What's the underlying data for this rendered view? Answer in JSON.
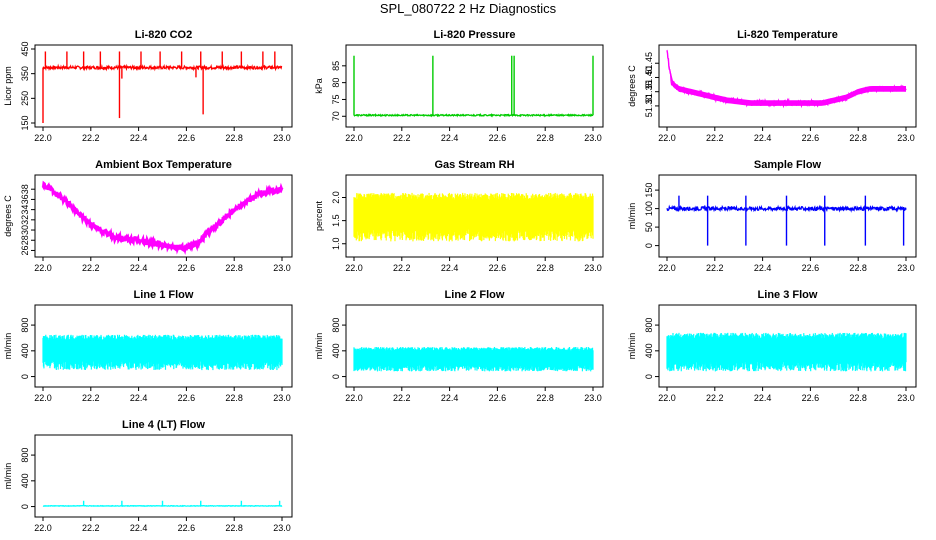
{
  "title": "SPL_080722  2 Hz Diagnostics",
  "chart_data": [
    {
      "id": "co2",
      "type": "line",
      "title": "Li-820 CO2",
      "ylabel": "Licor ppm",
      "color": "#ff0000",
      "xlim": [
        22.0,
        23.0
      ],
      "ylim": [
        150,
        450
      ],
      "xticks": [
        "22.0",
        "22.2",
        "22.4",
        "22.6",
        "22.8",
        "23.0"
      ],
      "yticks": [
        "150",
        "250",
        "350",
        "450"
      ],
      "baseline": 375,
      "noise": 6,
      "spikes": [
        {
          "x": 22.0,
          "y": 150
        },
        {
          "x": 22.32,
          "y": 170
        },
        {
          "x": 22.67,
          "y": 185
        },
        {
          "x": 22.33,
          "y": 330
        },
        {
          "x": 22.64,
          "y": 335
        }
      ],
      "up_spikes": [
        22.01,
        22.1,
        22.17,
        22.24,
        22.32,
        22.41,
        22.49,
        22.58,
        22.66,
        22.75,
        22.83,
        22.92,
        22.97
      ],
      "up_value": 440
    },
    {
      "id": "pressure",
      "type": "line",
      "title": "Li-820 Pressure",
      "ylabel": "kPa",
      "color": "#00cc00",
      "xlim": [
        22.0,
        23.0
      ],
      "ylim": [
        68,
        90
      ],
      "xticks": [
        "22.0",
        "22.2",
        "22.4",
        "22.6",
        "22.8",
        "23.0"
      ],
      "yticks": [
        "70",
        "75",
        "80",
        "85"
      ],
      "baseline": 70.3,
      "noise": 0.2,
      "up_spikes": [
        22.0,
        22.33,
        22.66,
        22.67,
        23.0
      ],
      "up_value": 88
    },
    {
      "id": "temperature",
      "type": "step",
      "title": "Li-820 Temperature",
      "ylabel": "degrees C",
      "color": "#ff00ff",
      "xlim": [
        22.0,
        23.0
      ],
      "ylim": [
        51.24,
        51.5
      ],
      "xticks": [
        "22.0",
        "22.2",
        "22.4",
        "22.6",
        "22.8",
        "23.0"
      ],
      "yticks": [
        "51.30",
        "51.35",
        "51.40",
        "51.45"
      ],
      "profile": [
        [
          22.0,
          51.49
        ],
        [
          22.02,
          51.38
        ],
        [
          22.05,
          51.36
        ],
        [
          22.1,
          51.35
        ],
        [
          22.15,
          51.34
        ],
        [
          22.2,
          51.33
        ],
        [
          22.25,
          51.32
        ],
        [
          22.35,
          51.31
        ],
        [
          22.65,
          51.31
        ],
        [
          22.7,
          51.32
        ],
        [
          22.75,
          51.33
        ],
        [
          22.8,
          51.35
        ],
        [
          22.85,
          51.36
        ],
        [
          23.0,
          51.36
        ]
      ],
      "band": 0.02
    },
    {
      "id": "ambient",
      "type": "line",
      "title": "Ambient Box Temperature",
      "ylabel": "degrees C",
      "color": "#ff00ff",
      "xlim": [
        22.0,
        23.0
      ],
      "ylim": [
        25.5,
        40
      ],
      "xticks": [
        "22.0",
        "22.2",
        "22.4",
        "22.6",
        "22.8",
        "23.0"
      ],
      "yticks": [
        "26",
        "28",
        "30",
        "32",
        "34",
        "36",
        "38"
      ],
      "profile": [
        [
          22.0,
          39
        ],
        [
          22.1,
          35.5
        ],
        [
          22.2,
          31
        ],
        [
          22.3,
          28.5
        ],
        [
          22.4,
          28
        ],
        [
          22.5,
          27
        ],
        [
          22.6,
          26.5
        ],
        [
          22.65,
          27.5
        ],
        [
          22.7,
          30
        ],
        [
          22.8,
          34
        ],
        [
          22.9,
          37
        ],
        [
          23.0,
          38
        ]
      ],
      "band": 0.5
    },
    {
      "id": "rh",
      "type": "band",
      "title": "Gas Stream RH",
      "ylabel": "percent",
      "color": "#ffff00",
      "xlim": [
        22.0,
        23.0
      ],
      "ylim": [
        0.8,
        2.4
      ],
      "xticks": [
        "22.0",
        "22.2",
        "22.4",
        "22.6",
        "22.8",
        "23.0"
      ],
      "yticks": [
        "1.0",
        "1.5",
        "2.0"
      ],
      "low": 1.05,
      "high": 2.1
    },
    {
      "id": "sample",
      "type": "line",
      "title": "Sample Flow",
      "ylabel": "ml/min",
      "color": "#0000ff",
      "xlim": [
        22.0,
        23.0
      ],
      "ylim": [
        -20,
        180
      ],
      "xticks": [
        "22.0",
        "22.2",
        "22.4",
        "22.6",
        "22.8",
        "23.0"
      ],
      "yticks": [
        "0",
        "50",
        "100",
        "150"
      ],
      "baseline": 100,
      "noise": 5,
      "spikes": [
        {
          "x": 22.17,
          "y": 0
        },
        {
          "x": 22.33,
          "y": 0
        },
        {
          "x": 22.5,
          "y": 0
        },
        {
          "x": 22.66,
          "y": 0
        },
        {
          "x": 22.83,
          "y": 0
        },
        {
          "x": 22.99,
          "y": 0
        }
      ],
      "up_spikes": [
        22.05,
        22.17,
        22.33,
        22.5,
        22.66,
        22.83
      ],
      "up_value": 135
    },
    {
      "id": "line1",
      "type": "band",
      "title": "Line 1 Flow",
      "ylabel": "ml/min",
      "color": "#00ffff",
      "xlim": [
        22.0,
        23.0
      ],
      "ylim": [
        -100,
        1050
      ],
      "xticks": [
        "22.0",
        "22.2",
        "22.4",
        "22.6",
        "22.8",
        "23.0"
      ],
      "yticks": [
        "0",
        "400",
        "800"
      ],
      "low": 100,
      "high": 650
    },
    {
      "id": "line2",
      "type": "band",
      "title": "Line 2 Flow",
      "ylabel": "ml/min",
      "color": "#00ffff",
      "xlim": [
        22.0,
        23.0
      ],
      "ylim": [
        -100,
        1050
      ],
      "xticks": [
        "22.0",
        "22.2",
        "22.4",
        "22.6",
        "22.8",
        "23.0"
      ],
      "yticks": [
        "0",
        "400",
        "800"
      ],
      "low": 80,
      "high": 460
    },
    {
      "id": "line3",
      "type": "band",
      "title": "Line 3 Flow",
      "ylabel": "ml/min",
      "color": "#00ffff",
      "xlim": [
        22.0,
        23.0
      ],
      "ylim": [
        -100,
        1050
      ],
      "xticks": [
        "22.0",
        "22.2",
        "22.4",
        "22.6",
        "22.8",
        "23.0"
      ],
      "yticks": [
        "0",
        "400",
        "800"
      ],
      "low": 80,
      "high": 680
    },
    {
      "id": "line4",
      "type": "line",
      "title": "Line 4 (LT) Flow",
      "ylabel": "ml/min",
      "color": "#00ffff",
      "xlim": [
        22.0,
        23.0
      ],
      "ylim": [
        -100,
        1050
      ],
      "xticks": [
        "22.0",
        "22.2",
        "22.4",
        "22.6",
        "22.8",
        "23.0"
      ],
      "yticks": [
        "0",
        "400",
        "800"
      ],
      "baseline": 10,
      "noise": 4,
      "up_spikes": [
        22.17,
        22.33,
        22.5,
        22.66,
        22.83,
        22.99
      ],
      "up_value": 90
    }
  ]
}
